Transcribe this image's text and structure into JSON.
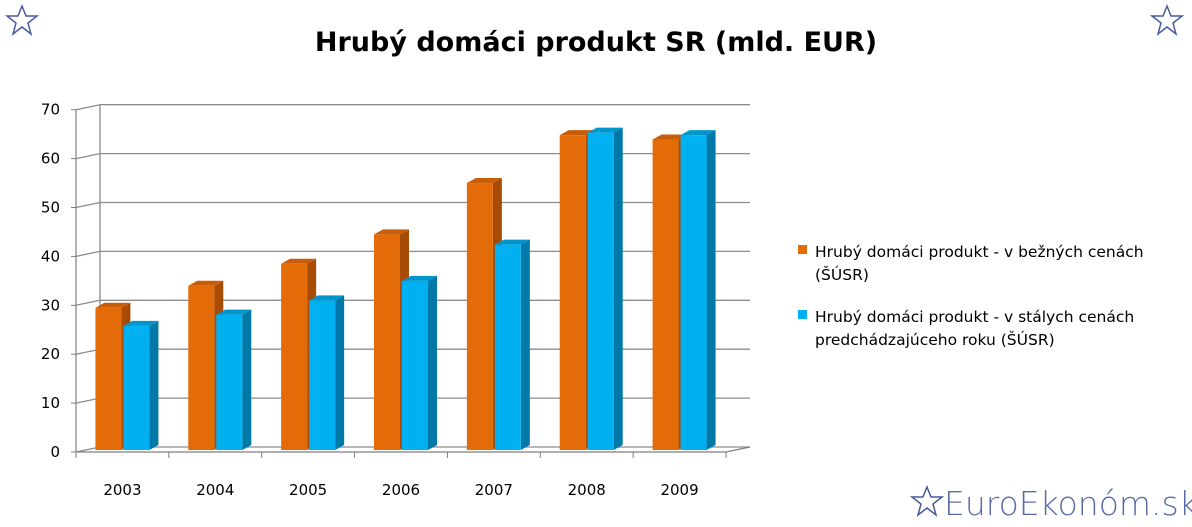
{
  "chart_data": {
    "type": "bar",
    "title": "Hrubý domáci produkt SR (mld. EUR)",
    "categories": [
      "2003",
      "2004",
      "2005",
      "2006",
      "2007",
      "2008",
      "2009"
    ],
    "series": [
      {
        "name": "Hrubý domáci produkt - v bežných cenách (ŠÚSR)",
        "legend_lines": [
          "Hrubý domáci produkt - v bežných cenách",
          "(ŠÚSR)"
        ],
        "color": "#e36c09",
        "side_color": "#a84c05",
        "top_color": "#c75d08",
        "values": [
          29.5,
          34,
          38.5,
          44.5,
          55,
          64.8,
          63.9
        ]
      },
      {
        "name": "Hrubý domáci produkt - v stálych cenách predchádzajúceho roku (ŠÚSR)",
        "legend_lines": [
          "Hrubý domáci produkt - v stálych cenách",
          "predchádzajúceho roku (ŠÚSR)"
        ],
        "color": "#00b0f0",
        "side_color": "#0079a8",
        "top_color": "#0096cc",
        "values": [
          25.8,
          28.1,
          31,
          35,
          42.4,
          65.3,
          64.8
        ]
      }
    ],
    "y_ticks": [
      0,
      10,
      20,
      30,
      40,
      50,
      60,
      70
    ],
    "ylim": [
      0,
      70
    ],
    "grid": true,
    "legend_position": "right"
  },
  "branding": {
    "site_name": "EuroEkonóm.sk",
    "star_color": "#4a5aa0"
  }
}
